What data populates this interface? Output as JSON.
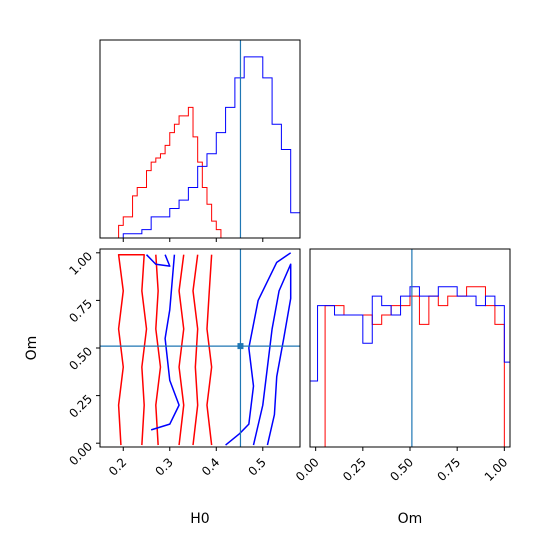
{
  "chart_data": [
    {
      "panel": "H0 marginal histogram",
      "type": "histogram-step",
      "xlim": [
        0.15,
        0.58
      ],
      "ylim": [
        0,
        47
      ],
      "truth_line": 0.452,
      "series": [
        {
          "color": "#ff0000",
          "bins": [
            0.19,
            0.2,
            0.21,
            0.22,
            0.23,
            0.24,
            0.25,
            0.26,
            0.27,
            0.28,
            0.29,
            0.3,
            0.31,
            0.32,
            0.33,
            0.34,
            0.35,
            0.36,
            0.37,
            0.38,
            0.39,
            0.4,
            0.41
          ],
          "values": [
            3,
            5,
            5,
            10,
            12,
            12,
            16,
            18,
            19,
            20,
            22,
            25,
            27,
            29,
            29,
            31,
            24,
            18,
            12,
            8,
            4,
            2
          ]
        },
        {
          "color": "#0000ff",
          "bins": [
            0.2,
            0.22,
            0.24,
            0.26,
            0.28,
            0.3,
            0.32,
            0.34,
            0.36,
            0.38,
            0.4,
            0.42,
            0.44,
            0.46,
            0.48,
            0.5,
            0.52,
            0.54,
            0.56,
            0.58
          ],
          "values": [
            1,
            1,
            2,
            5,
            5,
            7,
            9,
            12,
            17,
            20,
            25,
            31,
            38,
            43,
            43,
            38,
            27,
            21,
            6
          ]
        }
      ]
    },
    {
      "panel": "Om marginal histogram",
      "type": "histogram-step",
      "xlim": [
        -0.03,
        1.03
      ],
      "ylim": [
        0,
        21
      ],
      "truth_line": 0.51,
      "xlabel": "Om",
      "xticks": [
        "0.00",
        "0.25",
        "0.50",
        "0.75",
        "1.00"
      ],
      "series": [
        {
          "color": "#ff0000",
          "bins": [
            0.0,
            0.05,
            0.1,
            0.15,
            0.2,
            0.25,
            0.3,
            0.35,
            0.4,
            0.45,
            0.5,
            0.55,
            0.6,
            0.65,
            0.7,
            0.75,
            0.8,
            0.85,
            0.9,
            0.95,
            1.0
          ],
          "values": [
            0,
            15,
            15,
            14,
            14,
            14,
            13,
            14,
            15,
            15,
            16,
            13,
            16,
            15,
            16,
            16,
            17,
            17,
            15,
            13
          ]
        },
        {
          "color": "#0000ff",
          "bins": [
            -0.03,
            0.01,
            0.05,
            0.1,
            0.15,
            0.2,
            0.25,
            0.3,
            0.35,
            0.4,
            0.45,
            0.5,
            0.55,
            0.6,
            0.65,
            0.7,
            0.75,
            0.8,
            0.85,
            0.9,
            0.95,
            1.0,
            1.03
          ],
          "values": [
            7,
            15,
            15,
            14,
            14,
            14,
            11,
            16,
            15,
            14,
            16,
            17,
            16,
            16,
            17,
            17,
            16,
            16,
            15,
            16,
            15,
            9
          ]
        }
      ]
    },
    {
      "panel": "Om vs H0 2D density",
      "type": "contour",
      "xlabel": "H0",
      "ylabel": "Om",
      "xlim": [
        0.15,
        0.58
      ],
      "ylim": [
        -0.02,
        1.02
      ],
      "xticks": [
        "0.2",
        "0.3",
        "0.4",
        "0.5"
      ],
      "yticks": [
        "0.00",
        "0.25",
        "0.50",
        "0.75",
        "1.00"
      ],
      "truth_point": [
        0.452,
        0.51
      ],
      "series": [
        {
          "color": "#ff0000",
          "contours": [
            [
              [
                0.195,
                -0.01
              ],
              [
                0.19,
                0.2
              ],
              [
                0.2,
                0.4
              ],
              [
                0.19,
                0.6
              ],
              [
                0.2,
                0.8
              ],
              [
                0.19,
                0.99
              ],
              [
                0.245,
                0.99
              ],
              [
                0.24,
                0.8
              ],
              [
                0.25,
                0.6
              ],
              [
                0.24,
                0.4
              ],
              [
                0.245,
                0.2
              ],
              [
                0.24,
                -0.01
              ]
            ],
            [
              [
                0.32,
                -0.01
              ],
              [
                0.33,
                0.2
              ],
              [
                0.32,
                0.4
              ],
              [
                0.33,
                0.6
              ],
              [
                0.32,
                0.8
              ],
              [
                0.33,
                0.99
              ]
            ],
            [
              [
                0.35,
                -0.01
              ],
              [
                0.36,
                0.2
              ],
              [
                0.355,
                0.4
              ],
              [
                0.36,
                0.6
              ],
              [
                0.35,
                0.8
              ],
              [
                0.36,
                0.99
              ]
            ],
            [
              [
                0.39,
                -0.01
              ],
              [
                0.38,
                0.2
              ],
              [
                0.39,
                0.4
              ],
              [
                0.38,
                0.6
              ],
              [
                0.385,
                0.8
              ],
              [
                0.39,
                0.99
              ]
            ],
            [
              [
                0.275,
                -0.01
              ],
              [
                0.27,
                0.2
              ],
              [
                0.28,
                0.4
              ],
              [
                0.27,
                0.6
              ],
              [
                0.275,
                0.8
              ],
              [
                0.27,
                0.99
              ]
            ]
          ]
        },
        {
          "color": "#0000ff",
          "contours": [
            [
              [
                0.48,
                -0.01
              ],
              [
                0.5,
                0.2
              ],
              [
                0.51,
                0.4
              ],
              [
                0.52,
                0.6
              ],
              [
                0.535,
                0.8
              ],
              [
                0.56,
                0.94
              ],
              [
                0.56,
                0.76
              ],
              [
                0.545,
                0.55
              ],
              [
                0.53,
                0.35
              ],
              [
                0.525,
                0.15
              ],
              [
                0.51,
                -0.01
              ]
            ],
            [
              [
                0.42,
                -0.01
              ],
              [
                0.45,
                0.05
              ],
              [
                0.47,
                0.1
              ],
              [
                0.48,
                0.3
              ],
              [
                0.47,
                0.5
              ],
              [
                0.49,
                0.75
              ],
              [
                0.53,
                0.95
              ],
              [
                0.56,
                1.0
              ]
            ],
            [
              [
                0.25,
                0.99
              ],
              [
                0.27,
                0.94
              ],
              [
                0.3,
                0.93
              ],
              [
                0.29,
                0.99
              ]
            ],
            [
              [
                0.26,
                0.07
              ],
              [
                0.3,
                0.1
              ],
              [
                0.32,
                0.2
              ],
              [
                0.3,
                0.33
              ],
              [
                0.29,
                0.55
              ],
              [
                0.3,
                0.7
              ],
              [
                0.31,
                0.99
              ]
            ]
          ]
        }
      ]
    }
  ]
}
